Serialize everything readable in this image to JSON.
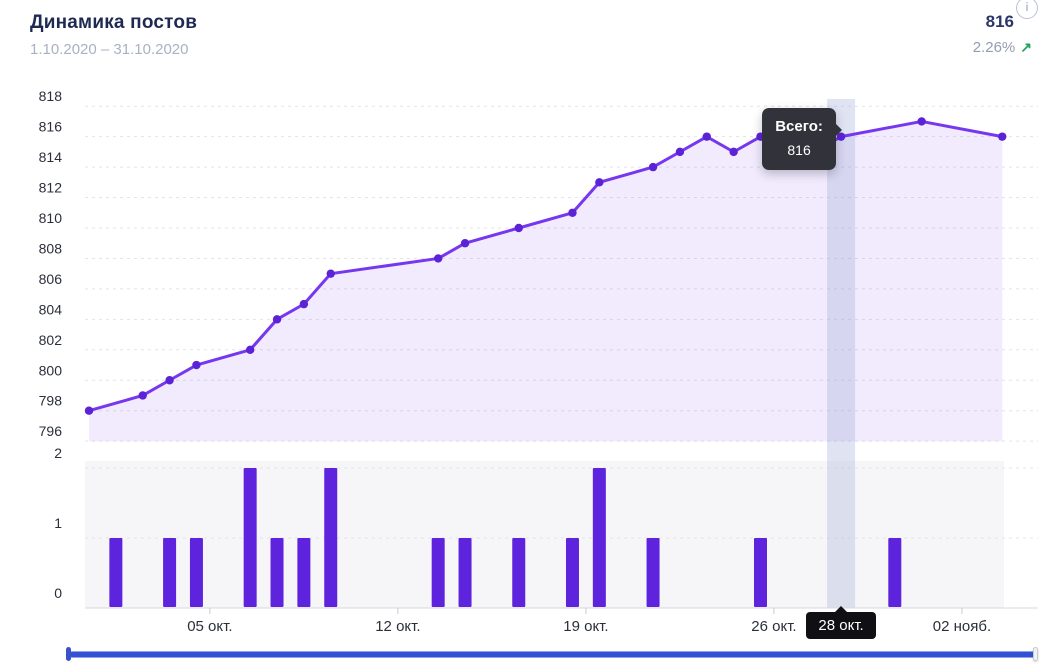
{
  "header": {
    "title": "Динамика постов",
    "date_range": "1.10.2020 – 31.10.2020",
    "total": "816",
    "change_percent": "2.26%",
    "trend_arrow": "↗",
    "info_icon_glyph": "i"
  },
  "tooltip": {
    "label": "Всего:",
    "value": "816"
  },
  "x_axis_tooltip": "28 окт.",
  "colors": {
    "title_navy": "#1e2a52",
    "subtitle_gray": "#a9b1c3",
    "green_up": "#1ea45c",
    "line_purple": "#7637ee",
    "marker_purple": "#5c22d6",
    "area_fill": "rgba(120,60,235,0.10)",
    "bar_purple": "#5e23dd",
    "bar_panel_bg": "#f6f6f8",
    "gridline_gray": "#e4e4e8",
    "axis_label_dark": "#2b2f3a",
    "highlight_band": "rgba(158,170,215,0.32)",
    "tooltip_bg": "#32323b",
    "scrollbar_blue": "#3351d5"
  },
  "chart_data": [
    {
      "type": "line",
      "name": "Всего",
      "dates": [
        "30.09",
        "02.10",
        "03.10",
        "04.10",
        "06.10",
        "07.10",
        "08.10",
        "09.10",
        "13.10",
        "14.10",
        "16.10",
        "18.10",
        "19.10",
        "21.10",
        "22.10",
        "23.10",
        "24.10",
        "25.10",
        "27.10",
        "28.10",
        "31.10",
        "03.11"
      ],
      "day_offsets": [
        0,
        2,
        3,
        4,
        6,
        7,
        8,
        9,
        13,
        14,
        16,
        18,
        19,
        21,
        22,
        23,
        24,
        25,
        27,
        28,
        31,
        34
      ],
      "values": [
        798,
        799,
        800,
        801,
        802,
        804,
        805,
        807,
        808,
        809,
        810,
        811,
        813,
        814,
        815,
        816,
        815,
        816,
        815,
        816,
        817,
        816
      ],
      "ylim": [
        796,
        818
      ],
      "yticks": [
        818,
        816,
        814,
        812,
        810,
        808,
        806,
        804,
        802,
        800,
        798,
        796
      ],
      "grid": "horizontal-dashed",
      "highlighted_point": {
        "date": "28.10",
        "label": "28 окт.",
        "value": 816,
        "index": 19
      }
    },
    {
      "type": "bar",
      "dates": [
        "01.10",
        "03.10",
        "04.10",
        "06.10",
        "07.10",
        "08.10",
        "09.10",
        "13.10",
        "14.10",
        "16.10",
        "18.10",
        "19.10",
        "21.10",
        "25.10",
        "30.10"
      ],
      "day_offsets": [
        1,
        3,
        4,
        6,
        7,
        8,
        9,
        13,
        14,
        16,
        18,
        19,
        21,
        25,
        30
      ],
      "values": [
        1,
        1,
        1,
        2,
        1,
        1,
        2,
        1,
        1,
        1,
        1,
        2,
        1,
        1,
        1
      ],
      "ylim": [
        0,
        2
      ],
      "yticks": [
        2,
        1,
        0
      ]
    }
  ],
  "x_axis": {
    "tick_labels": [
      "05 окт.",
      "12 окт.",
      "19 окт.",
      "26 окт.",
      "02 нояб."
    ],
    "tick_days": [
      5,
      12,
      19,
      26,
      33
    ]
  }
}
